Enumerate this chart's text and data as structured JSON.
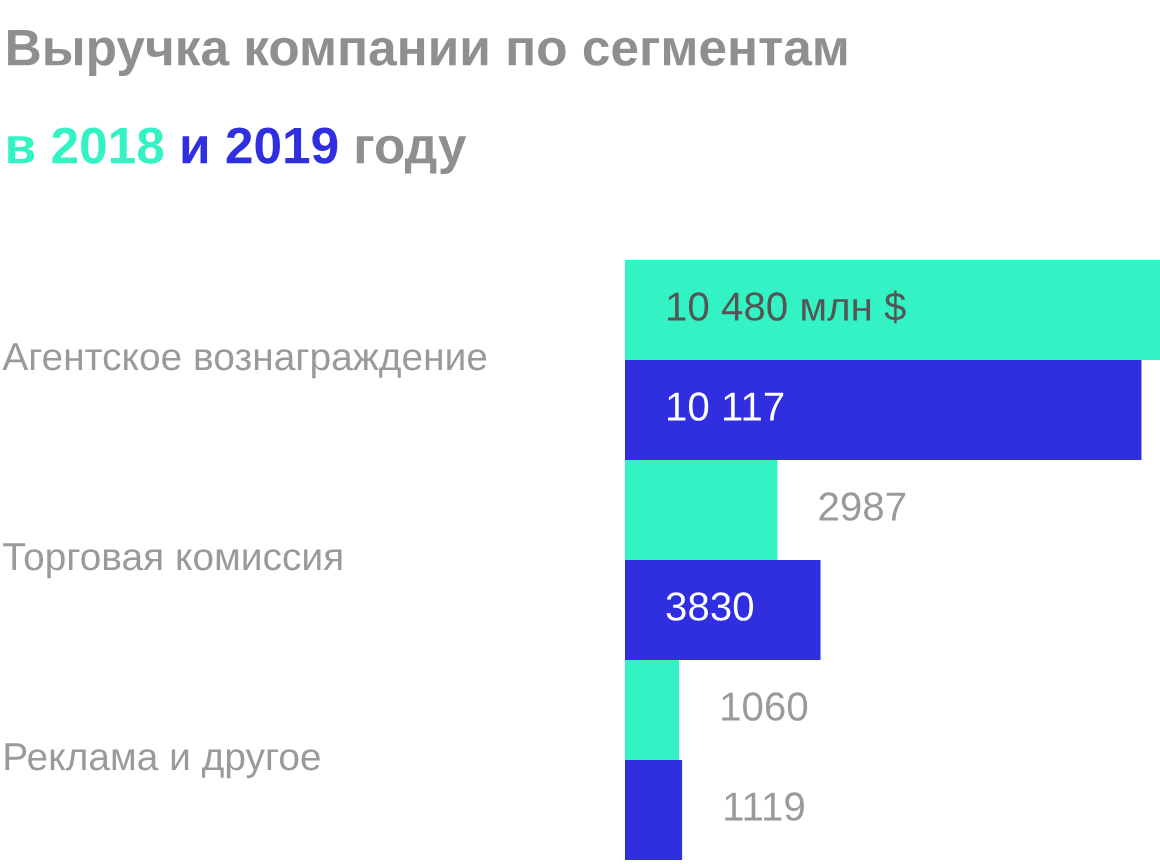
{
  "chart_data": {
    "type": "bar",
    "orientation": "horizontal",
    "title": "Выручка компании по сегментам",
    "subtitle": "в 2018 и 2019 году",
    "categories": [
      "Агентское вознаграждение",
      "Торговая комиссия",
      "Реклама и другое"
    ],
    "series": [
      {
        "color": "#33f3c5",
        "values": [
          10480,
          2987,
          1060
        ],
        "value_labels": [
          "10 480 млн $",
          "2987",
          "1060"
        ]
      },
      {
        "color": "#2f2fe0",
        "values": [
          10117,
          3830,
          1119
        ],
        "value_labels": [
          "10 117",
          "3830",
          "1119"
        ]
      }
    ]
  }
}
